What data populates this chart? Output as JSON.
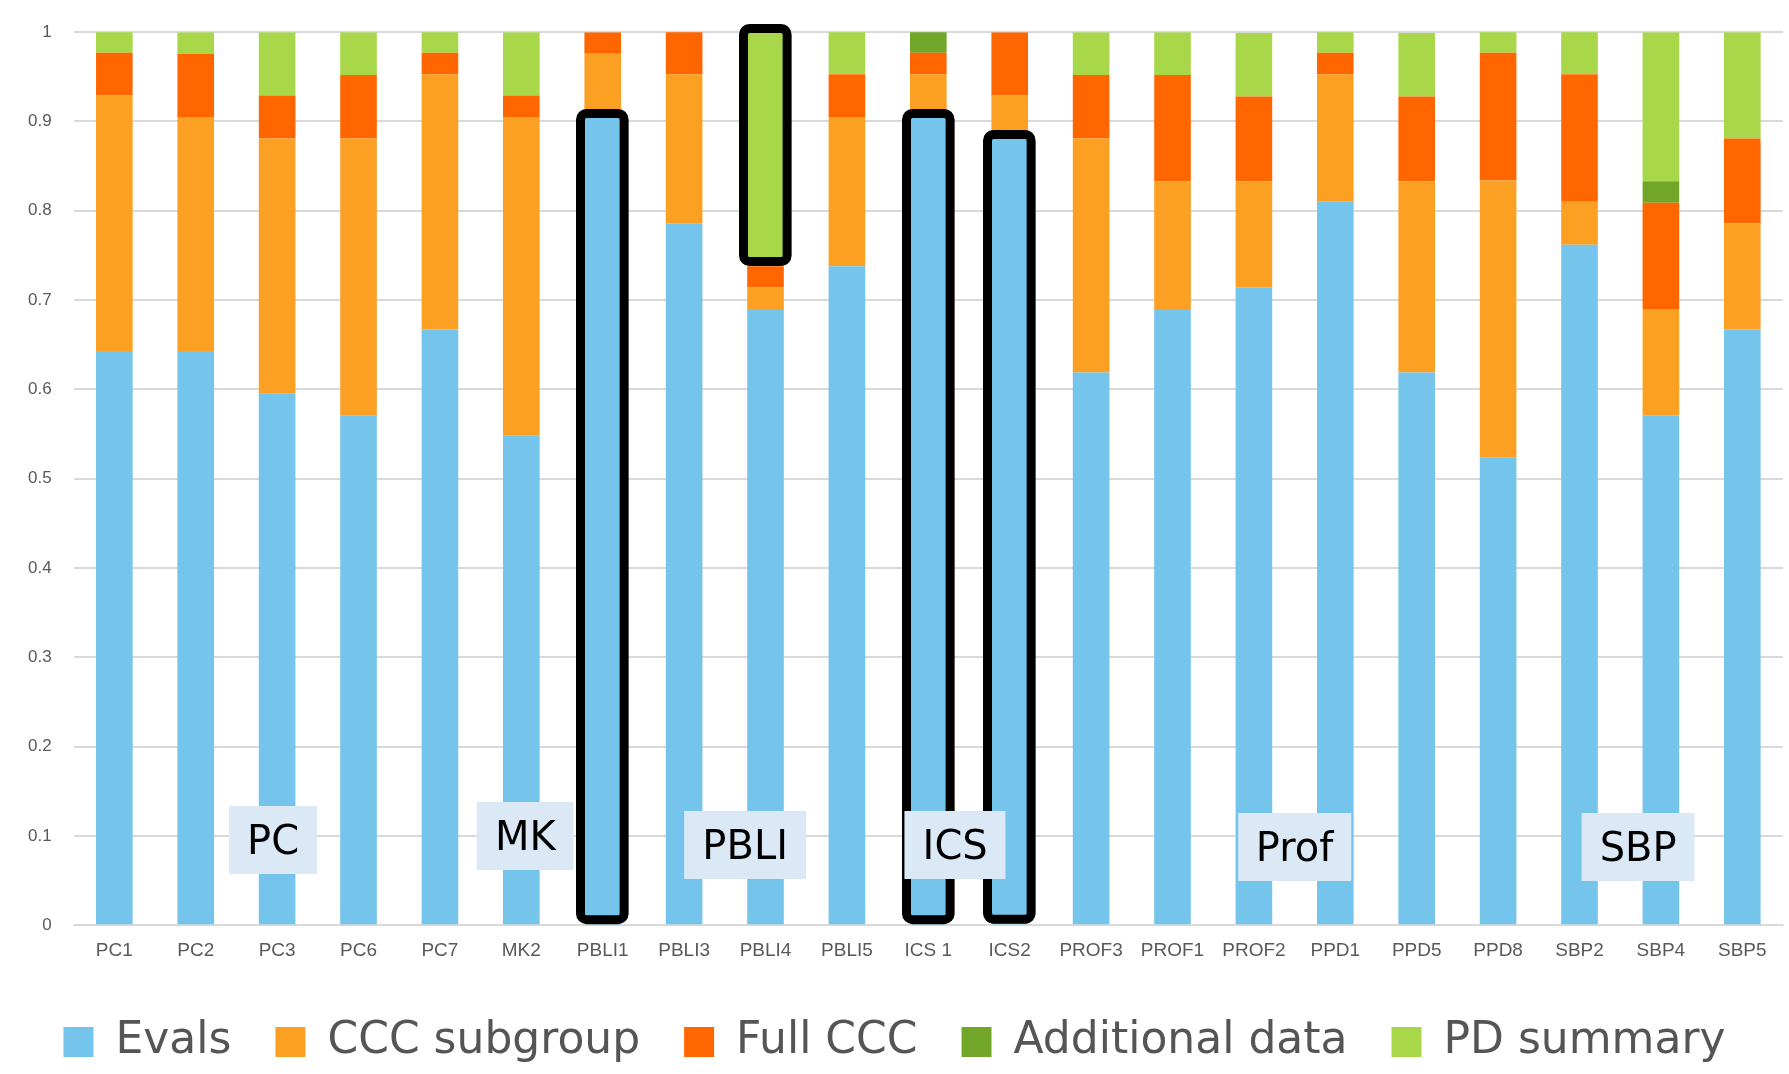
{
  "chart_data": {
    "type": "bar",
    "stacked": true,
    "categories": [
      "PC1",
      "PC2",
      "PC3",
      "PC6",
      "PC7",
      "MK2",
      "PBLI1",
      "PBLI3",
      "PBLI4",
      "PBLI5",
      "ICS 1",
      "ICS2",
      "PROF3",
      "PROF1",
      "PROF2",
      "PPD1",
      "PPD5",
      "PPD8",
      "SBP2",
      "SBP4",
      "SBP5"
    ],
    "series": [
      {
        "name": "Evals",
        "color": "#75c4ec",
        "values": [
          0.643,
          0.643,
          0.595,
          0.571,
          0.667,
          0.548,
          0.905,
          0.786,
          0.69,
          0.738,
          0.905,
          0.881,
          0.619,
          0.69,
          0.714,
          0.81,
          0.619,
          0.524,
          0.762,
          0.571,
          0.667
        ]
      },
      {
        "name": "CCC subgroup",
        "color": "#fca024",
        "values": [
          0.286,
          0.262,
          0.286,
          0.31,
          0.286,
          0.357,
          0.071,
          0.167,
          0.024,
          0.167,
          0.048,
          0.048,
          0.262,
          0.143,
          0.119,
          0.143,
          0.214,
          0.31,
          0.048,
          0.119,
          0.119
        ]
      },
      {
        "name": "Full CCC",
        "color": "#ff6600",
        "values": [
          0.048,
          0.071,
          0.048,
          0.071,
          0.024,
          0.024,
          0.024,
          0.048,
          0.024,
          0.048,
          0.024,
          0.071,
          0.071,
          0.119,
          0.095,
          0.024,
          0.095,
          0.143,
          0.143,
          0.119,
          0.095
        ]
      },
      {
        "name": "Additional data",
        "color": "#72a628",
        "values": [
          0,
          0,
          0,
          0,
          0,
          0,
          0,
          0,
          0,
          0,
          0.024,
          0,
          0,
          0,
          0,
          0,
          0,
          0,
          0,
          0.024,
          0
        ]
      },
      {
        "name": "PD summary",
        "color": "#a8d84a",
        "values": [
          0.024,
          0.024,
          0.071,
          0.048,
          0.024,
          0.071,
          0,
          0,
          0.262,
          0.048,
          0,
          0,
          0.048,
          0.048,
          0.071,
          0.024,
          0.071,
          0.024,
          0.048,
          0.167,
          0.119
        ]
      }
    ],
    "ylim": [
      0,
      1
    ],
    "yticks": [
      0,
      0.1,
      0.2,
      0.3,
      0.4,
      0.5,
      0.6,
      0.7,
      0.8,
      0.9,
      1
    ],
    "grid": "y",
    "legend": "bottom",
    "annotations": [
      "PC",
      "MK",
      "PBLI",
      "ICS",
      "Prof",
      "SBP"
    ]
  }
}
